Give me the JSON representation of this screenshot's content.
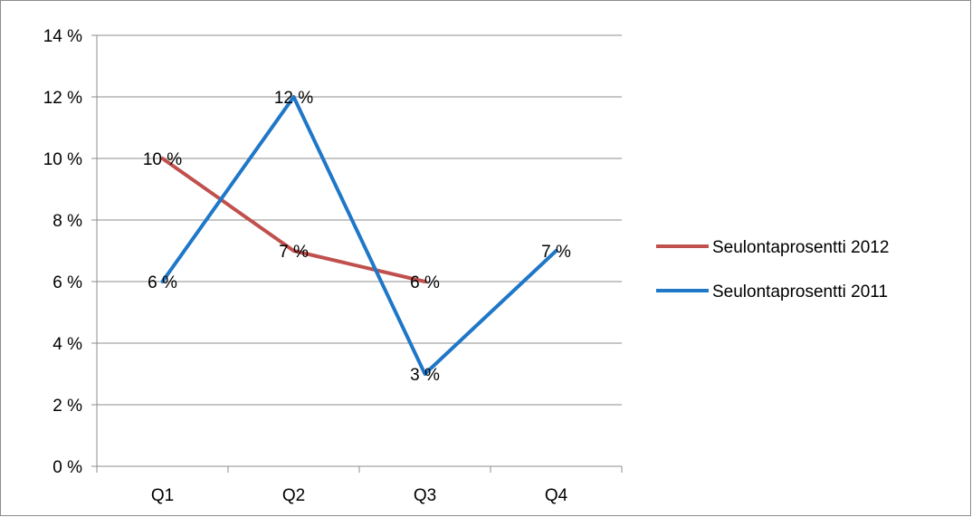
{
  "chart_data": {
    "type": "line",
    "categories": [
      "Q1",
      "Q2",
      "Q3",
      "Q4"
    ],
    "series": [
      {
        "name": "Seulontaprosentti 2012",
        "values": [
          10,
          7,
          6,
          null
        ],
        "labels": [
          "10 %",
          "7 %",
          "6 %",
          null
        ],
        "color": "#c0504d"
      },
      {
        "name": "Seulontaprosentti 2011",
        "values": [
          6,
          12,
          3,
          7
        ],
        "labels": [
          "6 %",
          "12 %",
          "3 %",
          "7 %"
        ],
        "color": "#1f77c8"
      }
    ],
    "ylim": [
      0,
      14
    ],
    "yticks": [
      0,
      2,
      4,
      6,
      8,
      10,
      12,
      14
    ],
    "ytick_labels": [
      "0 %",
      "2 %",
      "4 %",
      "6 %",
      "8 %",
      "10 %",
      "12 %",
      "14 %"
    ],
    "grid": true,
    "legend_position": "right",
    "gridline_color": "#8c8c8c",
    "axis_color": "#8c8c8c"
  }
}
